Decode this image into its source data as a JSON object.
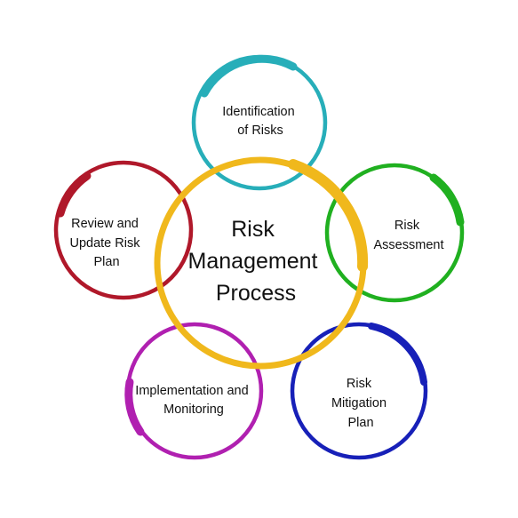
{
  "center": {
    "label_lines": [
      "Risk",
      "Management",
      "Process"
    ],
    "color": "#F0B81C"
  },
  "nodes": [
    {
      "id": "identification",
      "label_lines": [
        "Identification",
        "of Risks"
      ],
      "color": "#27AEB9"
    },
    {
      "id": "assessment",
      "label_lines": [
        "Risk",
        "Assessment"
      ],
      "color": "#20B020"
    },
    {
      "id": "mitigation",
      "label_lines": [
        "Risk",
        "Mitigation",
        "Plan"
      ],
      "color": "#1720B8"
    },
    {
      "id": "implementation",
      "label_lines": [
        "Implementation and",
        "Monitoring"
      ],
      "color": "#B020B0"
    },
    {
      "id": "review",
      "label_lines": [
        "Review and",
        "Update Risk",
        "Plan"
      ],
      "color": "#B0182A"
    }
  ]
}
